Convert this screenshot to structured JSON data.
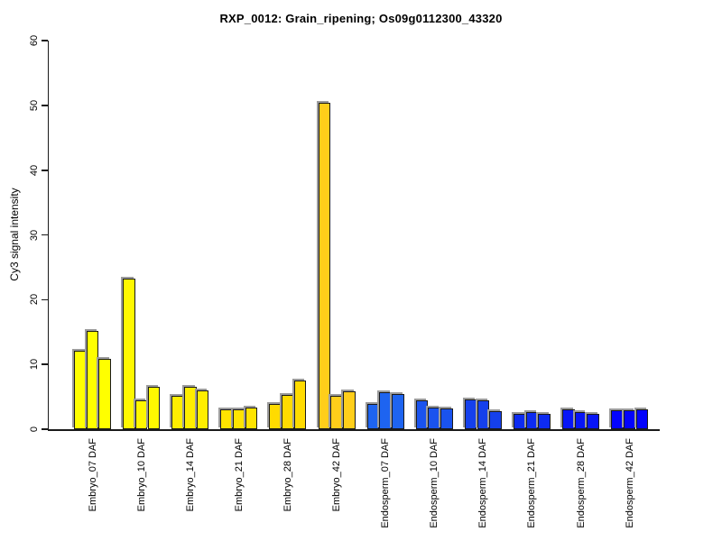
{
  "chart_data": {
    "type": "bar",
    "title": "RXP_0012: Grain_ripening; Os09g0112300_43320",
    "xlabel": "",
    "ylabel": "Cy3 signal intensity",
    "ylim": [
      0,
      60
    ],
    "ytick_values": [
      0,
      10,
      20,
      30,
      40,
      50,
      60
    ],
    "grid": false,
    "legend_position": "none",
    "bars_per_group": 3,
    "bar_border_color": "#1a1a1a",
    "groups": [
      {
        "label": "Embryo_07 DAF",
        "color": "#FFFF00",
        "values": [
          12.1,
          15.2,
          10.8
        ]
      },
      {
        "label": "Embryo_10 DAF",
        "color": "#FFF800",
        "values": [
          23.3,
          4.4,
          6.6
        ]
      },
      {
        "label": "Embryo_14 DAF",
        "color": "#FFEE00",
        "values": [
          5.2,
          6.6,
          6.0
        ]
      },
      {
        "label": "Embryo_21 DAF",
        "color": "#FFE400",
        "values": [
          3.0,
          3.0,
          3.3
        ]
      },
      {
        "label": "Embryo_28 DAF",
        "color": "#FFDB00",
        "values": [
          3.9,
          5.3,
          7.5
        ]
      },
      {
        "label": "Embryo_42 DAF",
        "color": "#FFCE1A",
        "values": [
          50.4,
          5.2,
          5.9
        ]
      },
      {
        "label": "Endosperm_07 DAF",
        "color": "#1E64F0",
        "values": [
          3.9,
          5.7,
          5.5
        ]
      },
      {
        "label": "Endosperm_10 DAF",
        "color": "#1A53EE",
        "values": [
          4.4,
          3.3,
          3.2
        ]
      },
      {
        "label": "Endosperm_14 DAF",
        "color": "#1540EC",
        "values": [
          4.6,
          4.4,
          2.8
        ]
      },
      {
        "label": "Endosperm_21 DAF",
        "color": "#0D2BF1",
        "values": [
          2.3,
          2.7,
          2.4
        ]
      },
      {
        "label": "Endosperm_28 DAF",
        "color": "#0715F7",
        "values": [
          3.0,
          2.7,
          2.4
        ]
      },
      {
        "label": "Endosperm_42 DAF",
        "color": "#0303FD",
        "values": [
          2.9,
          2.9,
          3.1
        ]
      }
    ]
  }
}
